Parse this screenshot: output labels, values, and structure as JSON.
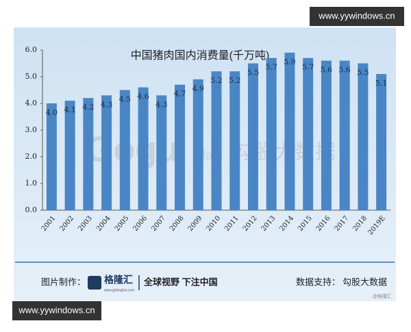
{
  "chart_data": {
    "type": "bar",
    "title": "中国猪肉国内消费量(千万吨)",
    "categories": [
      "2001",
      "2002",
      "2003",
      "2004",
      "2005",
      "2006",
      "2007",
      "2008",
      "2009",
      "2010",
      "2011",
      "2012",
      "2013",
      "2014",
      "2015",
      "2016",
      "2017",
      "2018",
      "2019E"
    ],
    "values": [
      4.0,
      4.1,
      4.2,
      4.3,
      4.5,
      4.6,
      4.3,
      4.7,
      4.9,
      5.2,
      5.2,
      5.5,
      5.7,
      5.9,
      5.7,
      5.6,
      5.6,
      5.5,
      5.1
    ],
    "value_labels": [
      "4.0",
      "4.1",
      "4.2",
      "4.3",
      "4.5",
      "4.6",
      "4.3",
      "4.7",
      "4.9",
      "5.2",
      "5.2",
      "5.5",
      "5.7",
      "5.9",
      "5.7",
      "5.6",
      "5.6",
      "5.5",
      "5.1"
    ],
    "color": "#4a86c6",
    "ylim": [
      0,
      6
    ],
    "yticks": [
      {
        "value": 0,
        "label": "0.0"
      },
      {
        "value": 1,
        "label": "1.0"
      },
      {
        "value": 2,
        "label": "2.0"
      },
      {
        "value": 3,
        "label": "3.0"
      },
      {
        "value": 4,
        "label": "4.0"
      },
      {
        "value": 5,
        "label": "5.0"
      },
      {
        "value": 6,
        "label": "6.0"
      }
    ],
    "grid": false
  },
  "watermark": {
    "logo": "Gogu",
    "sub": "data",
    "name": "勾股大数据"
  },
  "site_watermarks": [
    "www.yywindows.cn",
    "www.yywindows.cn"
  ],
  "footer": {
    "made_by_label": "图片制作：",
    "brand": "格隆汇",
    "brand_url": "www.gelonghui.com",
    "slogan": "全球视野 下注中国",
    "data_label": "数据支持：",
    "data_source": "勾股大数据",
    "credit": "@格隆汇"
  }
}
